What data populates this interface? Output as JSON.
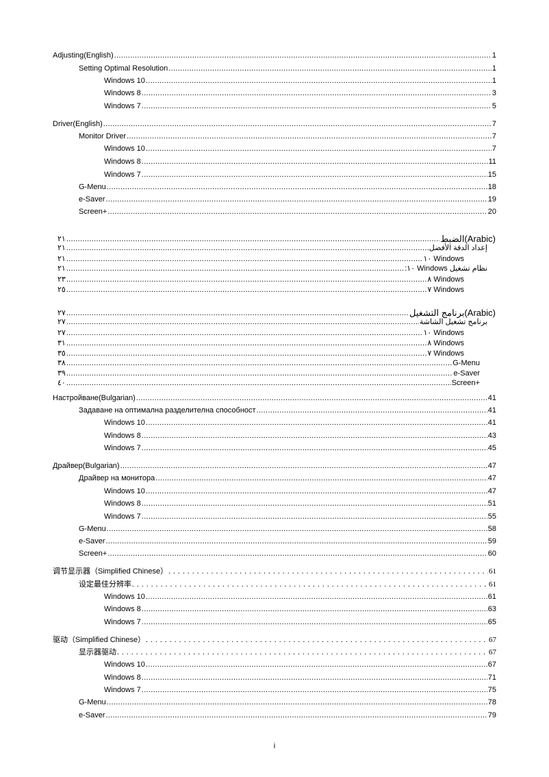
{
  "toc": [
    {
      "text": "Adjusting(English)",
      "page": "1",
      "level": 0
    },
    {
      "text": "Setting Optimal Resolution",
      "page": "1",
      "level": 1
    },
    {
      "text": "Windows 10",
      "page": "1",
      "level": 2
    },
    {
      "text": "Windows 8",
      "page": "3",
      "level": 2
    },
    {
      "text": "Windows 7",
      "page": "5",
      "level": 2
    },
    {
      "text": "Driver(English)",
      "page": "7",
      "level": 0
    },
    {
      "text": "Monitor Driver",
      "page": "7",
      "level": 1
    },
    {
      "text": "Windows 10",
      "page": "7",
      "level": 2
    },
    {
      "text": "Windows 8",
      "page": "11",
      "level": 2
    },
    {
      "text": "Windows 7",
      "page": "15",
      "level": 2
    },
    {
      "text": "G-Menu",
      "page": "18",
      "level": 1
    },
    {
      "text": "e-Saver",
      "page": "19",
      "level": 1
    },
    {
      "text": "Screen+",
      "page": "20",
      "level": 1
    },
    {
      "text": "(Arabic)الضبط",
      "page": "٢١",
      "level": "ar0"
    },
    {
      "text": "إعداد الدقة الأفضل",
      "page": "٢١",
      "level": "ar1"
    },
    {
      "text": "Windows ١٠",
      "page": "٢١",
      "level": "ar2"
    },
    {
      "text": "نظام تشغيل Windows ١٠:",
      "page": "٢١",
      "level": "ar1"
    },
    {
      "text": "Windows ٨",
      "page": "٢٣",
      "level": "ar2"
    },
    {
      "text": "Windows ٧",
      "page": "٢٥",
      "level": "ar2"
    },
    {
      "text": "(Arabic)برنامج التشغيل",
      "page": "٢٧",
      "level": "ar0"
    },
    {
      "text": "برنامج تشغيل الشاشة",
      "page": "٢٧",
      "level": "ar1"
    },
    {
      "text": "Windows ١٠",
      "page": "٢٧",
      "level": "ar2"
    },
    {
      "text": "Windows ٨",
      "page": "٣١",
      "level": "ar2"
    },
    {
      "text": "Windows ٧",
      "page": "٣٥",
      "level": "ar2"
    },
    {
      "text": "G-Menu",
      "page": "٣٨",
      "level": "ar3"
    },
    {
      "text": "e-Saver",
      "page": "٣٩",
      "level": "ar3"
    },
    {
      "text": "Screen+",
      "page": "٤٠",
      "level": "ar3"
    },
    {
      "text": "Настройване(Bulgarian)",
      "page": "41",
      "level": 0
    },
    {
      "text": "Задаване на оптимална разделителна способност",
      "page": "41",
      "level": 1
    },
    {
      "text": "Windows 10",
      "page": "41",
      "level": 2
    },
    {
      "text": "Windows 8",
      "page": "43",
      "level": 2
    },
    {
      "text": "Windows 7",
      "page": "45",
      "level": 2
    },
    {
      "text": "Драйвер(Bulgarian)",
      "page": "47",
      "level": 0
    },
    {
      "text": "Драйвер на монитора",
      "page": "47",
      "level": 1
    },
    {
      "text": "Windows 10",
      "page": "47",
      "level": 2
    },
    {
      "text": "Windows 8",
      "page": "51",
      "level": 2
    },
    {
      "text": "Windows 7",
      "page": "55",
      "level": 2
    },
    {
      "text": "G-Menu",
      "page": "58",
      "level": 1
    },
    {
      "text": "e-Saver",
      "page": "59",
      "level": 1
    },
    {
      "text": "Screen+",
      "page": "60",
      "level": 1
    },
    {
      "text": "调节显示器（Simplified Chinese）",
      "page": "61",
      "level": 0,
      "serif": true
    },
    {
      "text": "设定最佳分辨率",
      "page": "61",
      "level": 1,
      "serif": true
    },
    {
      "text": "Windows 10",
      "page": "61",
      "level": 2
    },
    {
      "text": "Windows 8",
      "page": "63",
      "level": 2
    },
    {
      "text": "Windows 7",
      "page": "65",
      "level": 2
    },
    {
      "text": "驱动（Simplified Chinese）",
      "page": "67",
      "level": 0,
      "serif": true
    },
    {
      "text": "显示器驱动",
      "page": "67",
      "level": 1,
      "serif": true
    },
    {
      "text": "Windows 10",
      "page": "67",
      "level": 2
    },
    {
      "text": "Windows 8",
      "page": "71",
      "level": 2
    },
    {
      "text": "Windows 7",
      "page": "75",
      "level": 2
    },
    {
      "text": "G-Menu",
      "page": "78",
      "level": 1
    },
    {
      "text": "e-Saver",
      "page": "79",
      "level": 1
    }
  ],
  "footer": {
    "page_number": "i"
  }
}
